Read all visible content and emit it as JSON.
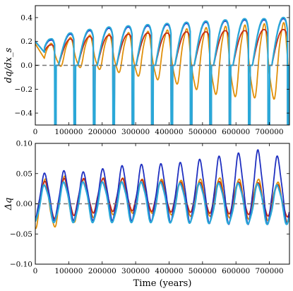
{
  "chart_data": [
    {
      "type": "line",
      "ylabel": "dq/dx_s",
      "xlabel": "",
      "xlim": [
        0,
        760000
      ],
      "ylim": [
        -0.5,
        0.5
      ],
      "x_ticks": [
        0,
        100000,
        200000,
        300000,
        400000,
        500000,
        600000,
        700000
      ],
      "x_tick_labels": [
        "0",
        "100000",
        "200000",
        "300000",
        "400000",
        "500000",
        "600000",
        "700000"
      ],
      "y_ticks": [
        -0.4,
        -0.2,
        0.0,
        0.2,
        0.4
      ],
      "y_tick_labels": [
        "−0.4",
        "−0.2",
        "0.0",
        "0.2",
        "0.4"
      ],
      "reference_line": {
        "y": 0.0,
        "style": "dashed",
        "color": "#777777"
      },
      "period": 58000,
      "cycle_peak_x": [
        45000,
        103000,
        161000,
        219000,
        277000,
        335000,
        393000,
        451000,
        509000,
        567000,
        625000,
        683000,
        741000
      ],
      "series": [
        {
          "color": "#e0900a",
          "cycle_peaks": [
            0.18,
            0.23,
            0.25,
            0.26,
            0.27,
            0.28,
            0.29,
            0.3,
            0.31,
            0.32,
            0.33,
            0.34,
            0.35
          ],
          "cycle_troughs": [
            0.0,
            -0.01,
            -0.02,
            -0.04,
            -0.07,
            -0.1,
            -0.13,
            -0.17,
            -0.22,
            -0.25,
            -0.26,
            -0.27,
            -0.28
          ]
        },
        {
          "color": "#c42a10",
          "cycle_peaks": [
            0.17,
            0.22,
            0.24,
            0.25,
            0.26,
            0.27,
            0.27,
            0.28,
            0.28,
            0.29,
            0.29,
            0.3,
            0.3
          ],
          "cycle_troughs": [
            -0.5,
            -0.5,
            -0.5,
            -0.5,
            -0.5,
            -0.5,
            -0.5,
            -0.5,
            -0.5,
            -0.5,
            -0.5,
            -0.5,
            -0.5
          ]
        },
        {
          "color": "#2030c0",
          "cycle_peaks": [
            0.21,
            0.26,
            0.29,
            0.31,
            0.32,
            0.33,
            0.34,
            0.35,
            0.36,
            0.37,
            0.38,
            0.38,
            0.39
          ],
          "cycle_troughs": [
            -0.5,
            -0.5,
            -0.5,
            -0.5,
            -0.5,
            -0.5,
            -0.5,
            -0.5,
            -0.5,
            -0.5,
            -0.5,
            -0.5,
            -0.5
          ]
        },
        {
          "color": "#2aa8d8",
          "cycle_peaks": [
            0.22,
            0.27,
            0.3,
            0.32,
            0.33,
            0.34,
            0.35,
            0.36,
            0.37,
            0.38,
            0.39,
            0.39,
            0.4
          ],
          "cycle_troughs": [
            -0.5,
            -0.5,
            -0.5,
            -0.5,
            -0.5,
            -0.5,
            -0.5,
            -0.5,
            -0.5,
            -0.5,
            -0.5,
            -0.5,
            -0.5
          ]
        }
      ]
    },
    {
      "type": "line",
      "ylabel": "Δq",
      "xlabel": "Time (years)",
      "xlim": [
        0,
        760000
      ],
      "ylim": [
        -0.1,
        0.1
      ],
      "x_ticks": [
        0,
        100000,
        200000,
        300000,
        400000,
        500000,
        600000,
        700000
      ],
      "x_tick_labels": [
        "0",
        "100000",
        "200000",
        "300000",
        "400000",
        "500000",
        "600000",
        "700000"
      ],
      "y_ticks": [
        -0.1,
        -0.05,
        0.0,
        0.05,
        0.1
      ],
      "y_tick_labels": [
        "−0.10",
        "−0.05",
        "0.00",
        "0.05",
        "0.10"
      ],
      "reference_line": {
        "y": 0.0,
        "style": "dashed",
        "color": "#777777"
      },
      "period": 58000,
      "cycle_peak_x": [
        28000,
        86000,
        144000,
        202000,
        260000,
        318000,
        376000,
        434000,
        492000,
        550000,
        608000,
        666000,
        724000
      ],
      "series": [
        {
          "color": "#e0900a",
          "cycle_peaks": [
            0.04,
            0.045,
            0.04,
            0.042,
            0.042,
            0.04,
            0.04,
            0.038,
            0.04,
            0.042,
            0.04,
            0.04,
            0.035
          ],
          "cycle_troughs": [
            -0.04,
            -0.035,
            -0.025,
            -0.02,
            -0.015,
            -0.015,
            -0.015,
            -0.02,
            -0.02,
            -0.02,
            -0.025,
            -0.025,
            -0.03
          ]
        },
        {
          "color": "#c42a10",
          "cycle_peaks": [
            0.035,
            0.04,
            0.04,
            0.04,
            0.04,
            0.038,
            0.036,
            0.034,
            0.034,
            0.035,
            0.034,
            0.033,
            0.03
          ],
          "cycle_troughs": [
            -0.025,
            -0.02,
            -0.015,
            -0.012,
            -0.01,
            -0.01,
            -0.012,
            -0.012,
            -0.013,
            -0.015,
            -0.015,
            -0.017,
            -0.02
          ]
        },
        {
          "color": "#2030c0",
          "cycle_peaks": [
            0.048,
            0.052,
            0.05,
            0.055,
            0.06,
            0.062,
            0.063,
            0.065,
            0.07,
            0.075,
            0.08,
            0.085,
            0.075
          ],
          "cycle_troughs": [
            -0.025,
            -0.025,
            -0.025,
            -0.025,
            -0.025,
            -0.026,
            -0.027,
            -0.028,
            -0.028,
            -0.03,
            -0.03,
            -0.03,
            -0.03
          ]
        },
        {
          "color": "#2aa8d8",
          "cycle_peaks": [
            0.03,
            0.035,
            0.035,
            0.035,
            0.035,
            0.035,
            0.035,
            0.033,
            0.033,
            0.033,
            0.033,
            0.032,
            0.03
          ],
          "cycle_troughs": [
            -0.03,
            -0.03,
            -0.03,
            -0.03,
            -0.03,
            -0.03,
            -0.03,
            -0.031,
            -0.031,
            -0.032,
            -0.032,
            -0.033,
            -0.033
          ]
        }
      ]
    }
  ]
}
